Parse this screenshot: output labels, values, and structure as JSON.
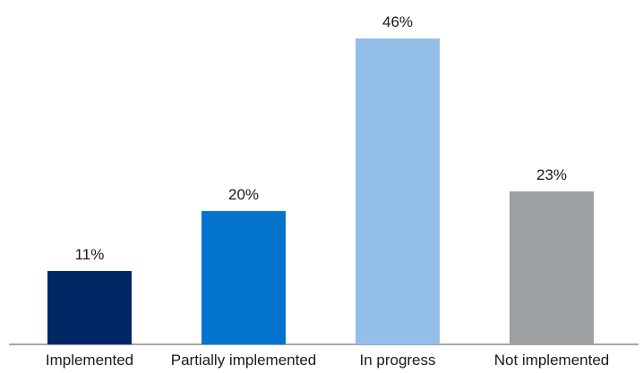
{
  "chart_data": {
    "type": "bar",
    "title": "",
    "categories": [
      "Implemented",
      "Partially implemented",
      "In progress",
      "Not implemented"
    ],
    "values": [
      11,
      20,
      46,
      23
    ],
    "value_labels": [
      "11%",
      "20%",
      "46%",
      "23%"
    ],
    "bar_colors": [
      "#002664",
      "#0473CE",
      "#93BFE9",
      "#9DA0A3"
    ],
    "unit": "%",
    "xlabel": "",
    "ylabel": "",
    "ylim": [
      0,
      50
    ],
    "grid": false,
    "legend": false,
    "y_axis_visible": false,
    "x_axis_line_color": "#A6A6A6",
    "label_color": "#1A1A1A",
    "background_color": "#FFFFFF"
  }
}
